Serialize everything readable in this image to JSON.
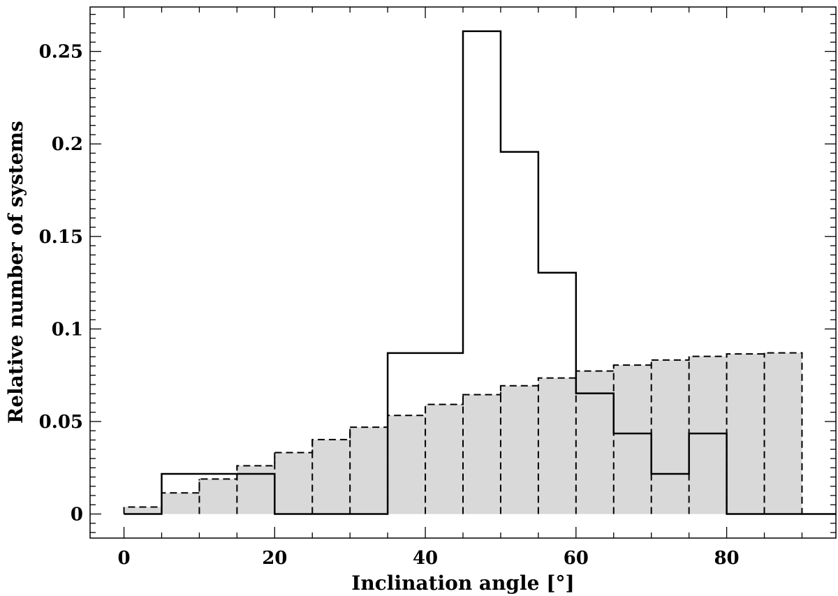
{
  "chart_data": {
    "type": "bar",
    "xlabel": "Inclination angle [°]",
    "ylabel": "Relative number of systems",
    "xlim": [
      -4.5,
      94.5
    ],
    "ylim": [
      -0.013,
      0.274
    ],
    "xticks": [
      0,
      20,
      40,
      60,
      80
    ],
    "xtick_labels": [
      "0",
      "20",
      "40",
      "60",
      "80"
    ],
    "yticks": [
      0,
      0.05,
      0.1,
      0.15,
      0.2,
      0.25
    ],
    "ytick_labels": [
      "0",
      "0.05",
      "0.1",
      "0.15",
      "0.2",
      "0.25"
    ],
    "bin_edges": [
      0,
      5,
      10,
      15,
      20,
      25,
      30,
      35,
      40,
      45,
      50,
      55,
      60,
      65,
      70,
      75,
      80,
      85,
      90
    ],
    "grid": false,
    "legend": "none",
    "series": [
      {
        "style": "dashed-filled",
        "fill": "#d9d9d9",
        "values": [
          0.0038,
          0.0114,
          0.0189,
          0.0261,
          0.0332,
          0.0402,
          0.0469,
          0.0533,
          0.0592,
          0.0645,
          0.0693,
          0.0735,
          0.0773,
          0.0805,
          0.0832,
          0.0852,
          0.0865,
          0.0871
        ]
      },
      {
        "style": "solid",
        "values": [
          0,
          0.0217,
          0.0217,
          0.0217,
          0,
          0,
          0,
          0.087,
          0.087,
          0.2609,
          0.1957,
          0.1304,
          0.0652,
          0.0435,
          0.0217,
          0.0435,
          0,
          0
        ]
      }
    ]
  }
}
